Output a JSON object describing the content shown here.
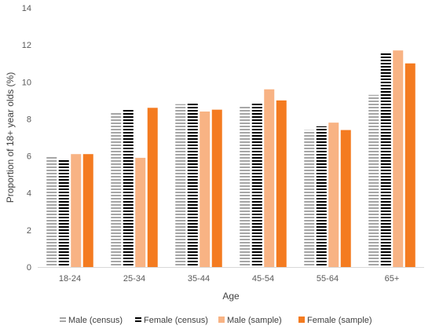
{
  "chart_data": {
    "type": "bar",
    "title": "",
    "xlabel": "Age",
    "ylabel": "Proportion of 18+ year olds (%)",
    "ylim": [
      0,
      14
    ],
    "yticks": [
      0,
      2,
      4,
      6,
      8,
      10,
      12,
      14
    ],
    "grid": false,
    "legend_position": "bottom",
    "categories": [
      "18-24",
      "25-34",
      "35-44",
      "45-54",
      "55-64",
      "65+"
    ],
    "series": [
      {
        "name": "Male (census)",
        "values": [
          6.0,
          8.4,
          8.8,
          8.7,
          7.4,
          9.3
        ],
        "color": "#a6a6a6",
        "pattern": "stripes"
      },
      {
        "name": "Female (census)",
        "values": [
          5.8,
          8.5,
          8.9,
          8.9,
          7.6,
          11.6
        ],
        "color": "#000000",
        "pattern": "stripes"
      },
      {
        "name": "Male (sample)",
        "values": [
          6.1,
          5.9,
          8.4,
          9.6,
          7.8,
          11.7
        ],
        "color": "#f8b384",
        "pattern": "solid"
      },
      {
        "name": "Female (sample)",
        "values": [
          6.1,
          8.6,
          8.5,
          9.0,
          7.4,
          11.0
        ],
        "color": "#f47b20",
        "pattern": "solid"
      }
    ]
  }
}
